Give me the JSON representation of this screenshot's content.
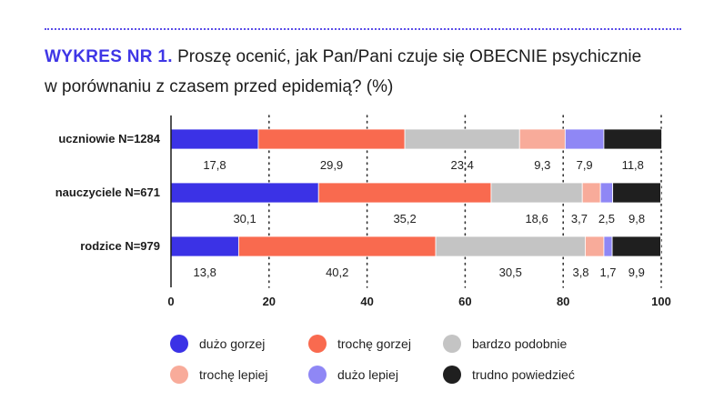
{
  "header": {
    "title_lead": "WYKRES NR 1.",
    "title_line1": "Proszę ocenić, jak Pan/Pani czuje się OBECNIE psychicznie",
    "title_line2": "w porównaniu z czasem przed epidemią? (%)"
  },
  "colors": {
    "accent": "#3f36e6",
    "grid": "#333333"
  },
  "chart_data": {
    "type": "bar",
    "orientation": "horizontal",
    "stacked": true,
    "categories": [
      "uczniowie N=1284",
      "nauczyciele N=671",
      "rodzice N=979"
    ],
    "series": [
      {
        "name": "dużo gorzej",
        "color": "#3b32e6",
        "values": [
          17.8,
          30.1,
          13.8
        ]
      },
      {
        "name": "trochę gorzej",
        "color": "#f96a4f",
        "values": [
          29.9,
          35.2,
          40.2
        ]
      },
      {
        "name": "bardzo podobnie",
        "color": "#c4c4c4",
        "values": [
          23.4,
          18.6,
          30.5
        ]
      },
      {
        "name": "trochę lepiej",
        "color": "#f8ab9a",
        "values": [
          9.3,
          3.7,
          3.8
        ]
      },
      {
        "name": "dużo lepiej",
        "color": "#8f87f5",
        "values": [
          7.9,
          2.5,
          1.7
        ]
      },
      {
        "name": "trudno powiedzieć",
        "color": "#1f1f1f",
        "values": [
          11.8,
          9.8,
          9.9
        ]
      }
    ],
    "xlim": [
      0,
      100
    ],
    "xticks": [
      "0",
      "20",
      "40",
      "60",
      "80",
      "100"
    ],
    "grid": true,
    "legend_position": "bottom"
  }
}
